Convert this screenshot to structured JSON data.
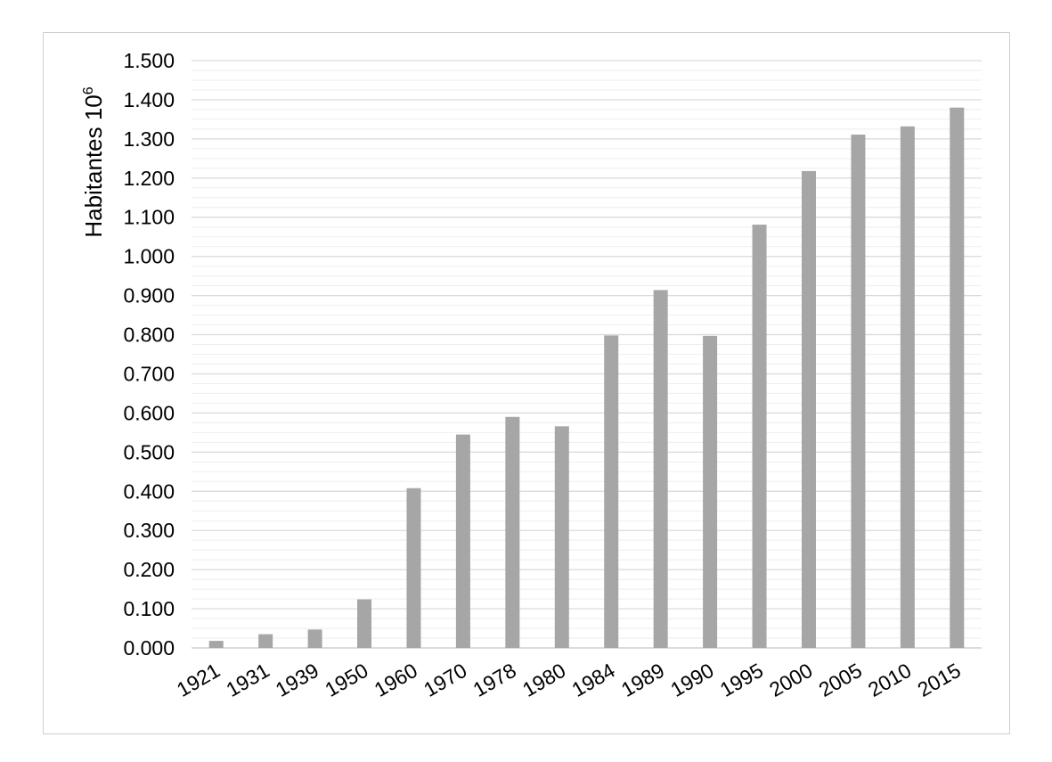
{
  "chart_data": {
    "type": "bar",
    "title": "",
    "xlabel": "",
    "ylabel": "Habitantes 10",
    "ylabel_superscript": "6",
    "ylim": [
      0,
      1.5
    ],
    "y_ticks": [
      "0.000",
      "0.100",
      "0.200",
      "0.300",
      "0.400",
      "0.500",
      "0.600",
      "0.700",
      "0.800",
      "0.900",
      "1.000",
      "1.100",
      "1.200",
      "1.300",
      "1.400",
      "1.500"
    ],
    "categories": [
      "1921",
      "1931",
      "1939",
      "1950",
      "1960",
      "1970",
      "1978",
      "1980",
      "1984",
      "1989",
      "1990",
      "1995",
      "2000",
      "2005",
      "2010",
      "2015"
    ],
    "series": [
      {
        "values": [
          0.018,
          0.035,
          0.047,
          0.124,
          0.408,
          0.545,
          0.59,
          0.566,
          0.798,
          0.914,
          0.797,
          1.081,
          1.218,
          1.311,
          1.332,
          1.38
        ]
      }
    ],
    "bar_color": "#a6a6a6",
    "grid": true,
    "legend": "none"
  }
}
